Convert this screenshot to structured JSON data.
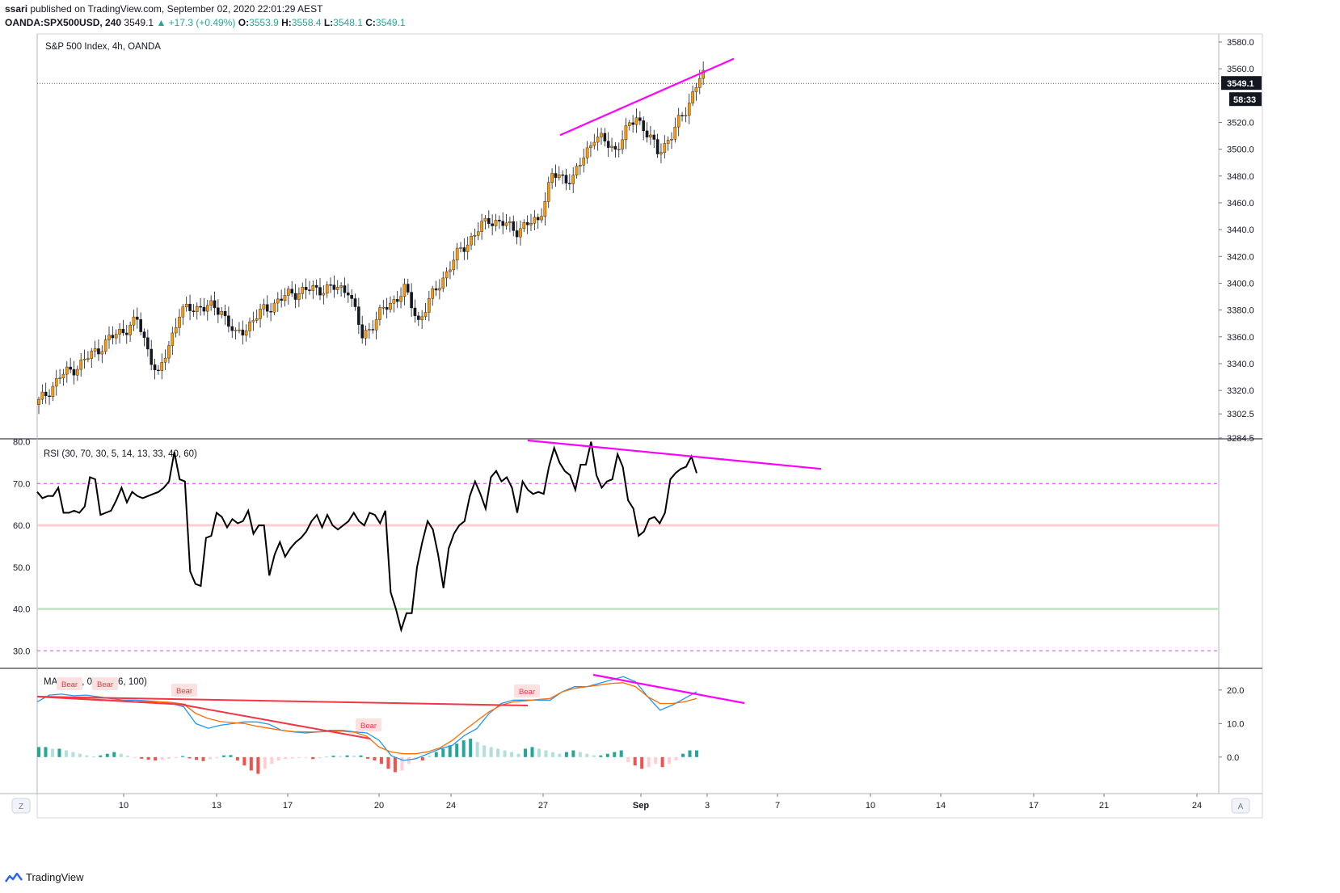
{
  "header": {
    "publisher": "ssari",
    "published_text": "published on TradingView.com, September 02, 2020 22:01:29 AEST",
    "symbol": "OANDA:SPX500USD, 240",
    "last": "3549.1",
    "change": "▲ +17.3 (+0.49%)",
    "o_label": "O:",
    "o_value": "3553.9",
    "h_label": "H:",
    "h_value": "3558.4",
    "l_label": "L:",
    "l_value": "3548.1",
    "c_label": "C:",
    "c_value": "3549.1"
  },
  "footer": {
    "brand": "TradingView"
  },
  "colors": {
    "up": "#ff9800",
    "down": "#131722",
    "trend": "#ff00ff",
    "bear": "#f23645",
    "macd": "#2196f3",
    "signal": "#ff6d00",
    "rsi": "#000000"
  },
  "chart_data": [
    {
      "type": "candlestick",
      "title": "S&P 500 Index, 4h, OANDA",
      "x_ticks": [
        "10",
        "13",
        "17",
        "20",
        "24",
        "27",
        "Sep",
        "3",
        "7",
        "10",
        "14",
        "17",
        "21",
        "24"
      ],
      "y_ticks": [
        "3580.0",
        "3560.0",
        "3549.1",
        "3520.0",
        "3500.0",
        "3480.0",
        "3460.0",
        "3440.0",
        "3420.0",
        "3400.0",
        "3380.0",
        "3360.0",
        "3340.0",
        "3320.0",
        "3302.5",
        "3284.5"
      ],
      "ylim": [
        3284.5,
        3586
      ],
      "last_price": 3549.1,
      "countdown": "58:33",
      "trendline": {
        "from": [
          0.783,
          3510
        ],
        "to": [
          1.0,
          3566
        ]
      },
      "waypoints": [
        [
          0,
          3311
        ],
        [
          6,
          3330
        ],
        [
          12,
          3340
        ],
        [
          20,
          3358
        ],
        [
          28,
          3372
        ],
        [
          34,
          3330
        ],
        [
          40,
          3378
        ],
        [
          46,
          3383
        ],
        [
          52,
          3380
        ],
        [
          56,
          3360
        ],
        [
          64,
          3380
        ],
        [
          72,
          3393
        ],
        [
          80,
          3396
        ],
        [
          88,
          3396
        ],
        [
          92,
          3360
        ],
        [
          98,
          3380
        ],
        [
          104,
          3395
        ],
        [
          108,
          3372
        ],
        [
          114,
          3400
        ],
        [
          120,
          3425
        ],
        [
          128,
          3448
        ],
        [
          136,
          3440
        ],
        [
          142,
          3447
        ],
        [
          146,
          3480
        ],
        [
          152,
          3478
        ],
        [
          158,
          3510
        ],
        [
          164,
          3500
        ],
        [
          170,
          3525
        ],
        [
          176,
          3498
        ],
        [
          180,
          3510
        ],
        [
          184,
          3530
        ],
        [
          188,
          3553
        ]
      ]
    },
    {
      "type": "line",
      "title": "RSI (30, 70, 30, 5, 14, 13, 33, 40, 60)",
      "y_ticks": [
        "80.0",
        "70.0",
        "60.0",
        "50.0",
        "40.0",
        "30.0"
      ],
      "ylim": [
        26,
        80.3
      ],
      "levels": [
        70,
        60,
        40,
        30
      ],
      "values": [
        68,
        66.5,
        67,
        67,
        69,
        63,
        63,
        63.5,
        63,
        64.5,
        71.5,
        71,
        62.5,
        63,
        63.5,
        66,
        69,
        65.5,
        68,
        67,
        66.5,
        67,
        67.5,
        68,
        69,
        70.5,
        77.5,
        71,
        70.5,
        49,
        46,
        45.5,
        57,
        57.5,
        63,
        62,
        59.5,
        61.5,
        60.5,
        61,
        63.5,
        58,
        60,
        60,
        48,
        53,
        56,
        52.5,
        54.5,
        56,
        57,
        58.5,
        61,
        62.5,
        59.5,
        62.5,
        60,
        59,
        60,
        61,
        63,
        61,
        60,
        63,
        62.5,
        60.5,
        63.5,
        44,
        40,
        35,
        39,
        39,
        50,
        56,
        61,
        59,
        53,
        45,
        54.5,
        58,
        60,
        61,
        67,
        70.5,
        67.5,
        64,
        71.5,
        73,
        70.5,
        71.5,
        69,
        63,
        70.5,
        68.5,
        67.5,
        68,
        67.5,
        74,
        78.5,
        75,
        73,
        72,
        68.5,
        74.5,
        74.5,
        80,
        72,
        69,
        70.5,
        71,
        77,
        74,
        66,
        64,
        57.5,
        58.5,
        61.5,
        62,
        60.5,
        63,
        71,
        72.5,
        73.5,
        74,
        76.5,
        72.5
      ],
      "trendline": {
        "from": [
          0.74,
          80.5
        ],
        "to": [
          1.1,
          73.5
        ]
      }
    },
    {
      "type": "line",
      "title": "MACD (0, 0, 12, 26, 100)",
      "y_ticks": [
        "20.0",
        "10.0",
        "0.0"
      ],
      "ylim": [
        -8,
        26
      ],
      "series": [
        {
          "name": "MACD",
          "values": [
            16.5,
            18.5,
            18.8,
            18.3,
            18.5,
            18.0,
            17.5,
            17.0,
            17.0,
            16.8,
            16.5,
            16.0,
            15.0,
            10.0,
            8.6,
            9.5,
            10.0,
            10.5,
            10.5,
            9.8,
            8.0,
            7.5,
            7.2,
            7.5,
            8.0,
            8.0,
            7.5,
            7.2,
            5.0,
            0.4,
            -1.0,
            -0.5,
            1.0,
            2.5,
            3.5,
            6.5,
            8.5,
            13.0,
            16.0,
            17.0,
            17.0,
            17.0,
            17.0,
            19.5,
            21.0,
            21.0,
            22.0,
            23.0,
            24.0,
            22.5,
            18.0,
            14.0,
            15.5,
            17.5,
            19.5
          ]
        },
        {
          "name": "Signal",
          "values": [
            18.0,
            18.0,
            17.8,
            17.6,
            17.4,
            17.2,
            17.0,
            16.8,
            16.6,
            16.5,
            16.5,
            16.3,
            15.8,
            13.0,
            11.5,
            10.6,
            10.3,
            10.0,
            9.2,
            8.6,
            8.0,
            7.6,
            7.5,
            7.5,
            7.7,
            7.7,
            7.4,
            6.2,
            3.0,
            1.5,
            1.0,
            1.0,
            1.6,
            2.8,
            5.0,
            8.0,
            10.8,
            13.5,
            15.5,
            16.5,
            16.8,
            17.2,
            17.5,
            19.5,
            20.5,
            21.0,
            21.5,
            22.0,
            22.2,
            21.0,
            18.0,
            16.0,
            16.0,
            16.5,
            17.5
          ]
        }
      ],
      "annotations": [
        "Bear",
        "Bear",
        "Bear",
        "Bear",
        "Bear"
      ],
      "hist": [
        3,
        3,
        2.5,
        2.5,
        2,
        1.5,
        1,
        0.5,
        0.2,
        0.5,
        1,
        1.5,
        1,
        0.4,
        -0.2,
        -0.5,
        -0.8,
        -1,
        -0.8,
        -0.5,
        -0.3,
        0.3,
        -0.4,
        -0.8,
        -1.2,
        -0.6,
        -0.3,
        0.5,
        0.6,
        -1,
        -2.5,
        -4,
        -5,
        -3.5,
        -2,
        -1,
        -0.6,
        -0.4,
        -0.3,
        -0.2,
        -0.6,
        -0.3,
        0.2,
        0.4,
        0.3,
        0.5,
        0.4,
        0.5,
        -0.5,
        -1,
        -2,
        -3.5,
        -4.5,
        -4,
        -2,
        -0.5,
        -1,
        0.5,
        1.5,
        2.5,
        3.5,
        4,
        5,
        5.5,
        4.5,
        3.5,
        3,
        2.5,
        2,
        1.5,
        1,
        2.5,
        3,
        2.5,
        2,
        1.5,
        1,
        1.5,
        2,
        1.5,
        1,
        0.5,
        0.5,
        1,
        1.5,
        2,
        -1.5,
        -2.5,
        -3.5,
        -3,
        -2,
        -3,
        -2,
        -1,
        1,
        2,
        2
      ]
    }
  ]
}
